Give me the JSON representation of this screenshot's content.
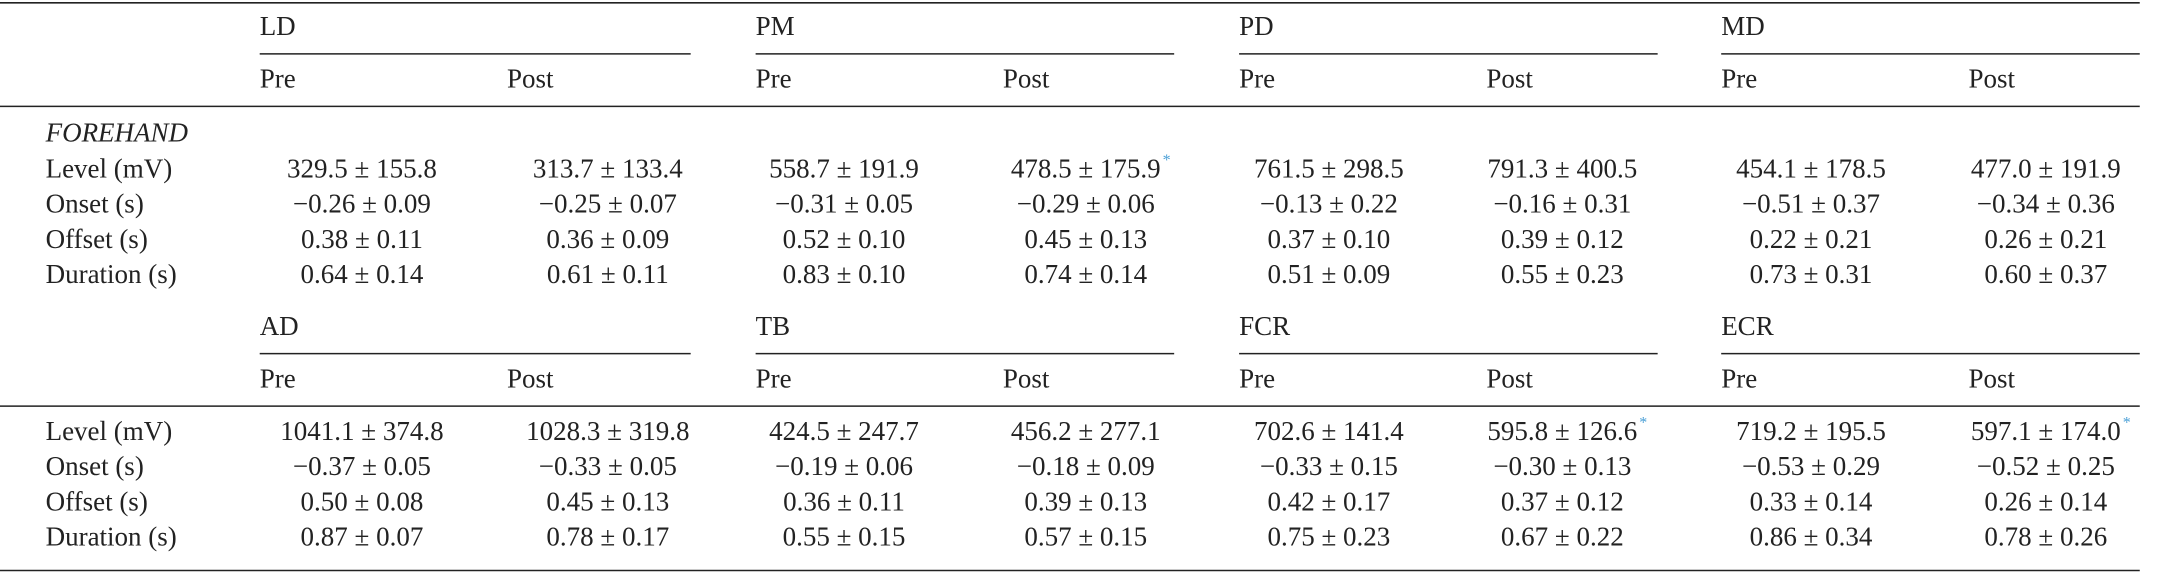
{
  "table": {
    "blocks": [
      {
        "groups": [
          {
            "name": "LD",
            "columns": [
              "Pre",
              "Post"
            ]
          },
          {
            "name": "PM",
            "columns": [
              "Pre",
              "Post"
            ]
          },
          {
            "name": "PD",
            "columns": [
              "Pre",
              "Post"
            ]
          },
          {
            "name": "MD",
            "columns": [
              "Pre",
              "Post"
            ]
          }
        ],
        "section": "FOREHAND",
        "rows": [
          {
            "label": "Level (mV)",
            "cells": [
              "329.5 ± 155.8",
              "313.7 ± 133.4",
              "558.7 ± 191.9",
              {
                "text": "478.5 ± 175.9",
                "note": "*"
              },
              "761.5 ± 298.5",
              "791.3 ± 400.5",
              "454.1 ± 178.5",
              "477.0 ± 191.9"
            ]
          },
          {
            "label": "Onset (s)",
            "cells": [
              "−0.26 ± 0.09",
              "−0.25 ± 0.07",
              "−0.31 ± 0.05",
              "−0.29 ± 0.06",
              "−0.13 ± 0.22",
              "−0.16 ± 0.31",
              "−0.51 ± 0.37",
              "−0.34 ± 0.36"
            ]
          },
          {
            "label": "Offset (s)",
            "cells": [
              "0.38 ± 0.11",
              "0.36 ± 0.09",
              "0.52 ± 0.10",
              "0.45 ± 0.13",
              "0.37 ± 0.10",
              "0.39 ± 0.12",
              "0.22 ± 0.21",
              "0.26 ± 0.21"
            ]
          },
          {
            "label": "Duration (s)",
            "cells": [
              "0.64 ± 0.14",
              "0.61 ± 0.11",
              "0.83 ± 0.10",
              "0.74 ± 0.14",
              "0.51 ± 0.09",
              "0.55 ± 0.23",
              "0.73 ± 0.31",
              "0.60 ± 0.37"
            ]
          }
        ]
      },
      {
        "groups": [
          {
            "name": "AD",
            "columns": [
              "Pre",
              "Post"
            ]
          },
          {
            "name": "TB",
            "columns": [
              "Pre",
              "Post"
            ]
          },
          {
            "name": "FCR",
            "columns": [
              "Pre",
              "Post"
            ]
          },
          {
            "name": "ECR",
            "columns": [
              "Pre",
              "Post"
            ]
          }
        ],
        "rows": [
          {
            "label": "Level (mV)",
            "cells": [
              "1041.1 ± 374.8",
              "1028.3 ± 319.8",
              "424.5 ± 247.7",
              "456.2 ± 277.1",
              "702.6 ± 141.4",
              {
                "text": "595.8 ± 126.6",
                "note": "*"
              },
              "719.2 ± 195.5",
              {
                "text": "597.1 ± 174.0",
                "note": "*"
              }
            ]
          },
          {
            "label": "Onset (s)",
            "cells": [
              "−0.37 ± 0.05",
              "−0.33 ± 0.05",
              "−0.19 ± 0.06",
              "−0.18 ± 0.09",
              "−0.33 ± 0.15",
              "−0.30 ± 0.13",
              "−0.53 ± 0.29",
              "−0.52 ± 0.25"
            ]
          },
          {
            "label": "Offset (s)",
            "cells": [
              "0.50 ± 0.08",
              "0.45 ± 0.13",
              "0.36 ± 0.11",
              "0.39 ± 0.13",
              "0.42 ± 0.17",
              "0.37 ± 0.12",
              "0.33 ± 0.14",
              "0.26 ± 0.14"
            ]
          },
          {
            "label": "Duration (s)",
            "cells": [
              "0.87 ± 0.07",
              "0.78 ± 0.17",
              "0.55 ± 0.15",
              "0.57 ± 0.15",
              "0.75 ± 0.23",
              "0.67 ± 0.22",
              "0.86 ± 0.34",
              "0.78 ± 0.26"
            ]
          }
        ]
      }
    ]
  }
}
